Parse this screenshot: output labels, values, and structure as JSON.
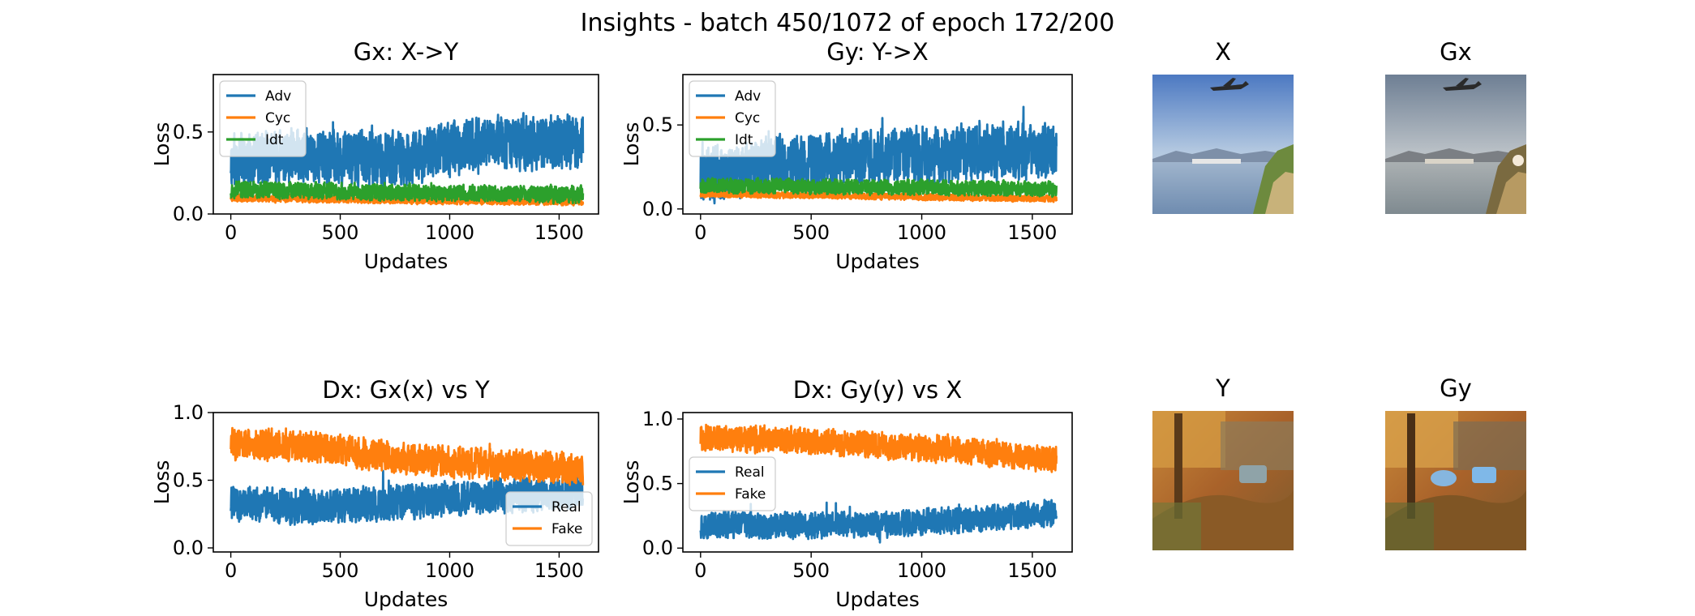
{
  "figure": {
    "title": "Insights - batch 450/1072 of epoch 172/200"
  },
  "chart_data": [
    {
      "type": "line",
      "title": "Gx: X->Y",
      "xlabel": "Updates",
      "ylabel": "Loss",
      "xlim": [
        -80,
        1680
      ],
      "ylim": [
        0,
        0.85
      ],
      "xticks": [
        0,
        500,
        1000,
        1500
      ],
      "yticks": [
        0.0,
        0.5
      ],
      "legend_position": "top-left",
      "n_points": 1610,
      "series": [
        {
          "name": "Adv",
          "color": "#1f77b4",
          "profile": [
            [
              0,
              0.33
            ],
            [
              400,
              0.35
            ],
            [
              800,
              0.33
            ],
            [
              1000,
              0.4
            ],
            [
              1200,
              0.43
            ],
            [
              1400,
              0.43
            ],
            [
              1610,
              0.44
            ]
          ],
          "spread": 0.13,
          "min": 0.05,
          "max": 0.82,
          "seed": 11
        },
        {
          "name": "Cyc",
          "color": "#ff7f0e",
          "profile": [
            [
              0,
              0.1
            ],
            [
              800,
              0.085
            ],
            [
              1610,
              0.075
            ]
          ],
          "spread": 0.018,
          "min": 0.04,
          "max": 0.17,
          "seed": 23
        },
        {
          "name": "Idt",
          "color": "#2ca02c",
          "profile": [
            [
              0,
              0.15
            ],
            [
              800,
              0.13
            ],
            [
              1610,
              0.12
            ]
          ],
          "spread": 0.04,
          "min": 0.04,
          "max": 0.36,
          "seed": 37
        }
      ]
    },
    {
      "type": "line",
      "title": "Gy: Y->X",
      "xlabel": "Updates",
      "ylabel": "Loss",
      "xlim": [
        -80,
        1680
      ],
      "ylim": [
        -0.03,
        0.8
      ],
      "xticks": [
        0,
        500,
        1000,
        1500
      ],
      "yticks": [
        0.0,
        0.5
      ],
      "legend_position": "top-left",
      "n_points": 1610,
      "series": [
        {
          "name": "Adv",
          "color": "#1f77b4",
          "profile": [
            [
              0,
              0.2
            ],
            [
              400,
              0.27
            ],
            [
              800,
              0.31
            ],
            [
              1200,
              0.33
            ],
            [
              1610,
              0.35
            ]
          ],
          "spread": 0.13,
          "min": 0.0,
          "max": 0.77,
          "seed": 41
        },
        {
          "name": "Cyc",
          "color": "#ff7f0e",
          "profile": [
            [
              0,
              0.09
            ],
            [
              800,
              0.075
            ],
            [
              1610,
              0.06
            ]
          ],
          "spread": 0.015,
          "min": 0.03,
          "max": 0.15,
          "seed": 53
        },
        {
          "name": "Idt",
          "color": "#2ca02c",
          "profile": [
            [
              0,
              0.14
            ],
            [
              800,
              0.13
            ],
            [
              1610,
              0.12
            ]
          ],
          "spread": 0.035,
          "min": 0.04,
          "max": 0.28,
          "seed": 67
        }
      ]
    },
    {
      "type": "line",
      "title": "Dx: Gx(x) vs Y",
      "xlabel": "Updates",
      "ylabel": "Loss",
      "xlim": [
        -80,
        1680
      ],
      "ylim": [
        -0.03,
        1.0
      ],
      "xticks": [
        0,
        500,
        1000,
        1500
      ],
      "yticks": [
        0.0,
        0.5,
        1.0
      ],
      "legend_position": "lower-right",
      "n_points": 1610,
      "series": [
        {
          "name": "Real",
          "color": "#1f77b4",
          "profile": [
            [
              0,
              0.33
            ],
            [
              400,
              0.3
            ],
            [
              800,
              0.34
            ],
            [
              1200,
              0.38
            ],
            [
              1610,
              0.42
            ]
          ],
          "spread": 0.1,
          "min": 0.0,
          "max": 0.75,
          "seed": 71
        },
        {
          "name": "Fake",
          "color": "#ff7f0e",
          "profile": [
            [
              0,
              0.78
            ],
            [
              400,
              0.74
            ],
            [
              800,
              0.66
            ],
            [
              1200,
              0.62
            ],
            [
              1610,
              0.58
            ]
          ],
          "spread": 0.09,
          "min": 0.28,
          "max": 0.97,
          "seed": 83
        }
      ]
    },
    {
      "type": "line",
      "title": "Dx: Gy(y) vs X",
      "xlabel": "Updates",
      "ylabel": "Loss",
      "xlim": [
        -80,
        1680
      ],
      "ylim": [
        -0.03,
        1.05
      ],
      "xticks": [
        0,
        500,
        1000,
        1500
      ],
      "yticks": [
        0.0,
        0.5,
        1.0
      ],
      "legend_position": "center-left",
      "n_points": 1610,
      "series": [
        {
          "name": "Real",
          "color": "#1f77b4",
          "profile": [
            [
              0,
              0.18
            ],
            [
              400,
              0.17
            ],
            [
              800,
              0.18
            ],
            [
              1200,
              0.22
            ],
            [
              1610,
              0.28
            ]
          ],
          "spread": 0.08,
          "min": 0.0,
          "max": 0.58,
          "seed": 97
        },
        {
          "name": "Fake",
          "color": "#ff7f0e",
          "profile": [
            [
              0,
              0.85
            ],
            [
              400,
              0.84
            ],
            [
              800,
              0.8
            ],
            [
              1200,
              0.75
            ],
            [
              1610,
              0.68
            ]
          ],
          "spread": 0.08,
          "min": 0.38,
          "max": 1.0,
          "seed": 101
        }
      ]
    }
  ],
  "images": [
    {
      "title": "X",
      "icon": "harbor-photo-with-airplane"
    },
    {
      "title": "Gx",
      "icon": "stylized-harbor-photo-with-airplane"
    },
    {
      "title": "Y",
      "icon": "autumn-painting"
    },
    {
      "title": "Gy",
      "icon": "photo-style-autumn-scene"
    }
  ]
}
